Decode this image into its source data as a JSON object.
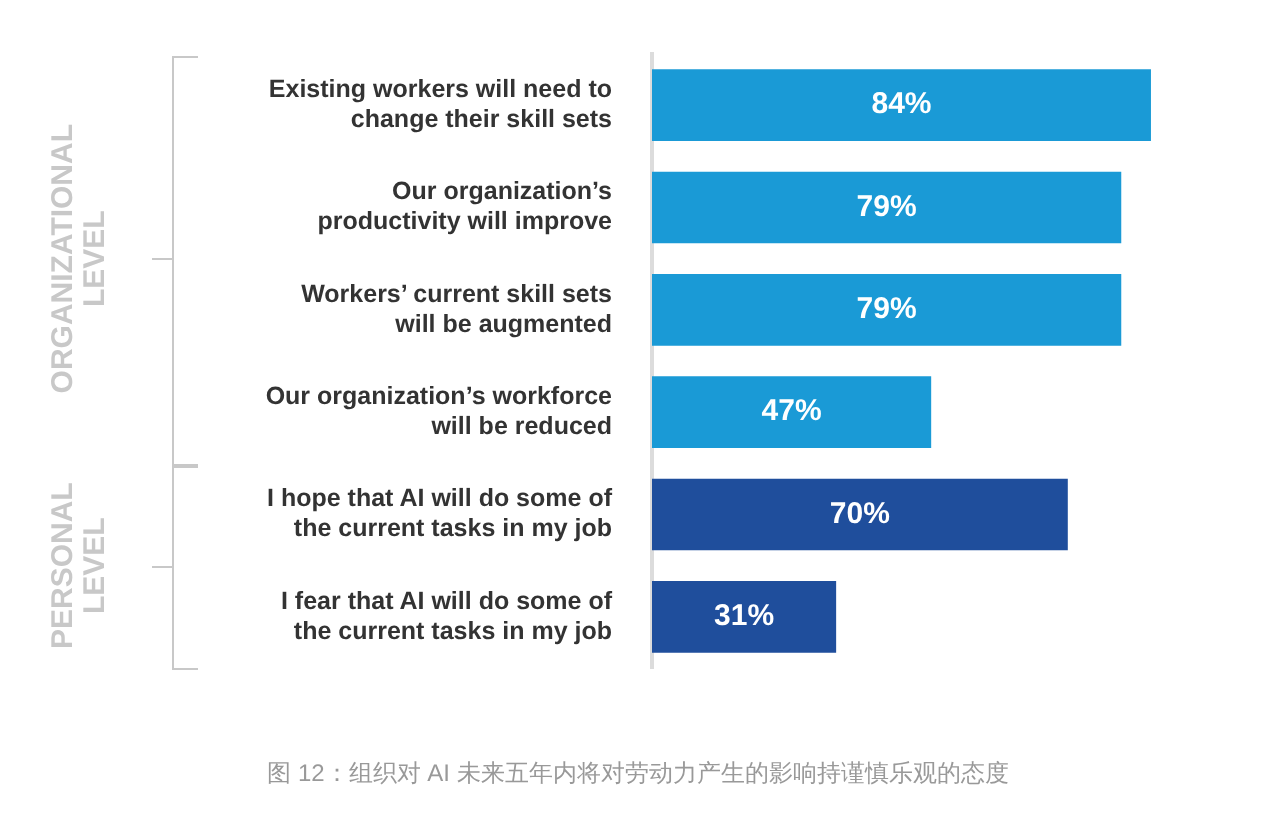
{
  "chart_data": {
    "type": "bar",
    "orientation": "horizontal",
    "categories": [
      "Existing workers will need to change their skill sets",
      "Our organization’s productivity will improve",
      "Workers’ current skill sets will be augmented",
      "Our organization’s workforce will be reduced",
      "I hope that AI will do some of the current tasks in my job",
      "I fear that AI will do some of the current tasks in my job"
    ],
    "values": [
      84,
      79,
      79,
      47,
      70,
      31
    ],
    "colors": [
      "#1a9ad6",
      "#1a9ad6",
      "#1a9ad6",
      "#1a9ad6",
      "#1f4e9c",
      "#1f4e9c"
    ],
    "value_labels": [
      "84%",
      "79%",
      "79%",
      "47%",
      "70%",
      "31%"
    ],
    "tick_labels": "y",
    "legend": false,
    "annotations": [
      "ORGANIZATIONAL LEVEL",
      "PERSONAL LEVEL",
      "图 12：组织对 AI 未来五年内将对劳动力产生的影响持谨慎乐观的态度"
    ]
  }
}
